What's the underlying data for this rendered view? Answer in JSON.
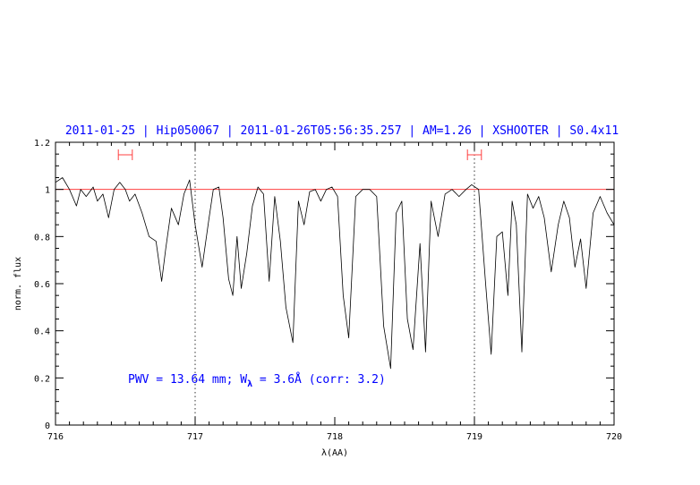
{
  "chart_data": {
    "type": "line",
    "title": "2011-01-25 | Hip050067 | 2011-01-26T05:56:35.257 | AM=1.26 | XSHOOTER | S0.4x11",
    "xlabel": "λ(AA)",
    "ylabel": "norm. flux",
    "xlim": [
      716,
      720
    ],
    "ylim": [
      0,
      1.2
    ],
    "x_ticks": [
      "716",
      "717",
      "718",
      "719",
      "720"
    ],
    "y_ticks": [
      "0",
      "0.2",
      "0.4",
      "0.6",
      "0.8",
      "1",
      "1.2"
    ],
    "reference_line": 1.0,
    "vertical_markers": [
      717.0,
      719.0
    ],
    "continuum_windows": [
      [
        716.45,
        716.55
      ],
      [
        718.95,
        719.05
      ]
    ],
    "annotation": {
      "prefix": "PWV = 13.64 mm; W",
      "subscript": "λ",
      "suffix": " = 3.6Å (corr: 3.2)"
    },
    "colors": {
      "spectrum": "#000000",
      "reference": "#ff4040",
      "windows": "#ff4040",
      "text": "#0000ff",
      "axes": "#000000"
    },
    "series": [
      {
        "x": [
          716.0,
          716.05,
          716.1,
          716.15,
          716.18,
          716.22,
          716.27,
          716.3,
          716.34,
          716.38,
          716.42,
          716.46,
          716.5,
          716.53,
          716.57,
          716.62,
          716.67,
          716.72,
          716.76,
          716.79,
          716.83,
          716.88,
          716.92,
          716.96,
          717.0,
          717.05,
          717.1,
          717.13,
          717.17,
          717.2,
          717.24,
          717.27,
          717.3,
          717.33,
          717.37,
          717.41,
          717.45,
          717.49,
          717.53,
          717.57,
          717.61,
          717.65,
          717.7,
          717.74,
          717.78,
          717.82,
          717.86,
          717.9,
          717.94,
          717.98,
          718.02,
          718.06,
          718.1,
          718.15,
          718.2,
          718.25,
          718.3,
          718.35,
          718.4,
          718.44,
          718.48,
          718.52,
          718.56,
          718.61,
          718.65,
          718.69,
          718.74,
          718.79,
          718.84,
          718.89,
          718.94,
          718.98,
          719.03,
          719.08,
          719.12,
          719.16,
          719.2,
          719.24,
          719.27,
          719.3,
          719.34,
          719.38,
          719.42,
          719.46,
          719.5,
          719.55,
          719.6,
          719.64,
          719.68,
          719.72,
          719.76,
          719.8,
          719.85,
          719.9,
          719.95,
          720.0
        ],
        "y": [
          1.03,
          1.05,
          1.0,
          0.93,
          1.0,
          0.97,
          1.01,
          0.95,
          0.98,
          0.88,
          1.0,
          1.03,
          1.0,
          0.95,
          0.98,
          0.9,
          0.8,
          0.78,
          0.61,
          0.75,
          0.92,
          0.85,
          0.98,
          1.04,
          0.85,
          0.67,
          0.88,
          1.0,
          1.01,
          0.88,
          0.62,
          0.55,
          0.8,
          0.58,
          0.73,
          0.93,
          1.01,
          0.98,
          0.61,
          0.97,
          0.78,
          0.5,
          0.35,
          0.95,
          0.85,
          0.99,
          1.0,
          0.95,
          1.0,
          1.01,
          0.97,
          0.55,
          0.37,
          0.97,
          1.0,
          1.0,
          0.97,
          0.42,
          0.24,
          0.9,
          0.95,
          0.45,
          0.32,
          0.77,
          0.31,
          0.95,
          0.8,
          0.98,
          1.0,
          0.97,
          1.0,
          1.02,
          1.0,
          0.6,
          0.3,
          0.8,
          0.82,
          0.55,
          0.95,
          0.85,
          0.31,
          0.98,
          0.92,
          0.97,
          0.88,
          0.65,
          0.85,
          0.95,
          0.88,
          0.67,
          0.79,
          0.58,
          0.9,
          0.97,
          0.9,
          0.85
        ]
      }
    ]
  }
}
